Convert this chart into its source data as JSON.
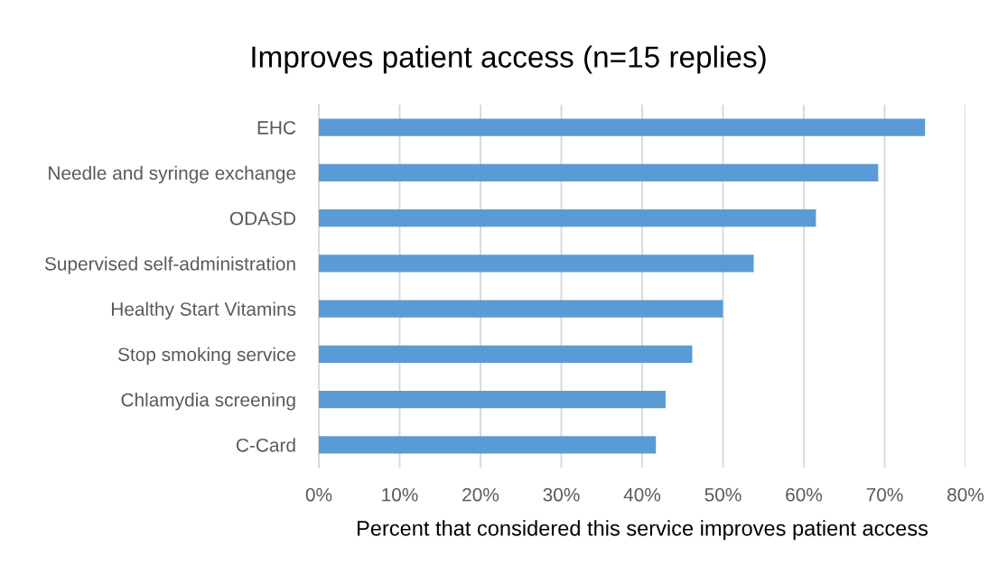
{
  "chart_data": {
    "type": "bar",
    "orientation": "horizontal",
    "title": "Improves patient access (n=15 replies)",
    "xlabel": "Percent that considered this service improves patient access",
    "categories": [
      "EHC",
      "Needle and syringe exchange",
      "ODASD",
      "Supervised self-administration",
      "Healthy Start Vitamins",
      "Stop smoking service",
      "Chlamydia screening",
      "C-Card"
    ],
    "values": [
      75,
      69.2,
      61.5,
      53.8,
      50,
      46.2,
      42.9,
      41.7
    ],
    "color": "#5b9bd5",
    "xlim": [
      0,
      80
    ],
    "xticks": [
      {
        "value": 0,
        "label": "0%"
      },
      {
        "value": 10,
        "label": "10%"
      },
      {
        "value": 20,
        "label": "20%"
      },
      {
        "value": 30,
        "label": "30%"
      },
      {
        "value": 40,
        "label": "40%"
      },
      {
        "value": 50,
        "label": "50%"
      },
      {
        "value": 60,
        "label": "60%"
      },
      {
        "value": 70,
        "label": "70%"
      },
      {
        "value": 80,
        "label": "80%"
      }
    ],
    "grid": "x"
  }
}
